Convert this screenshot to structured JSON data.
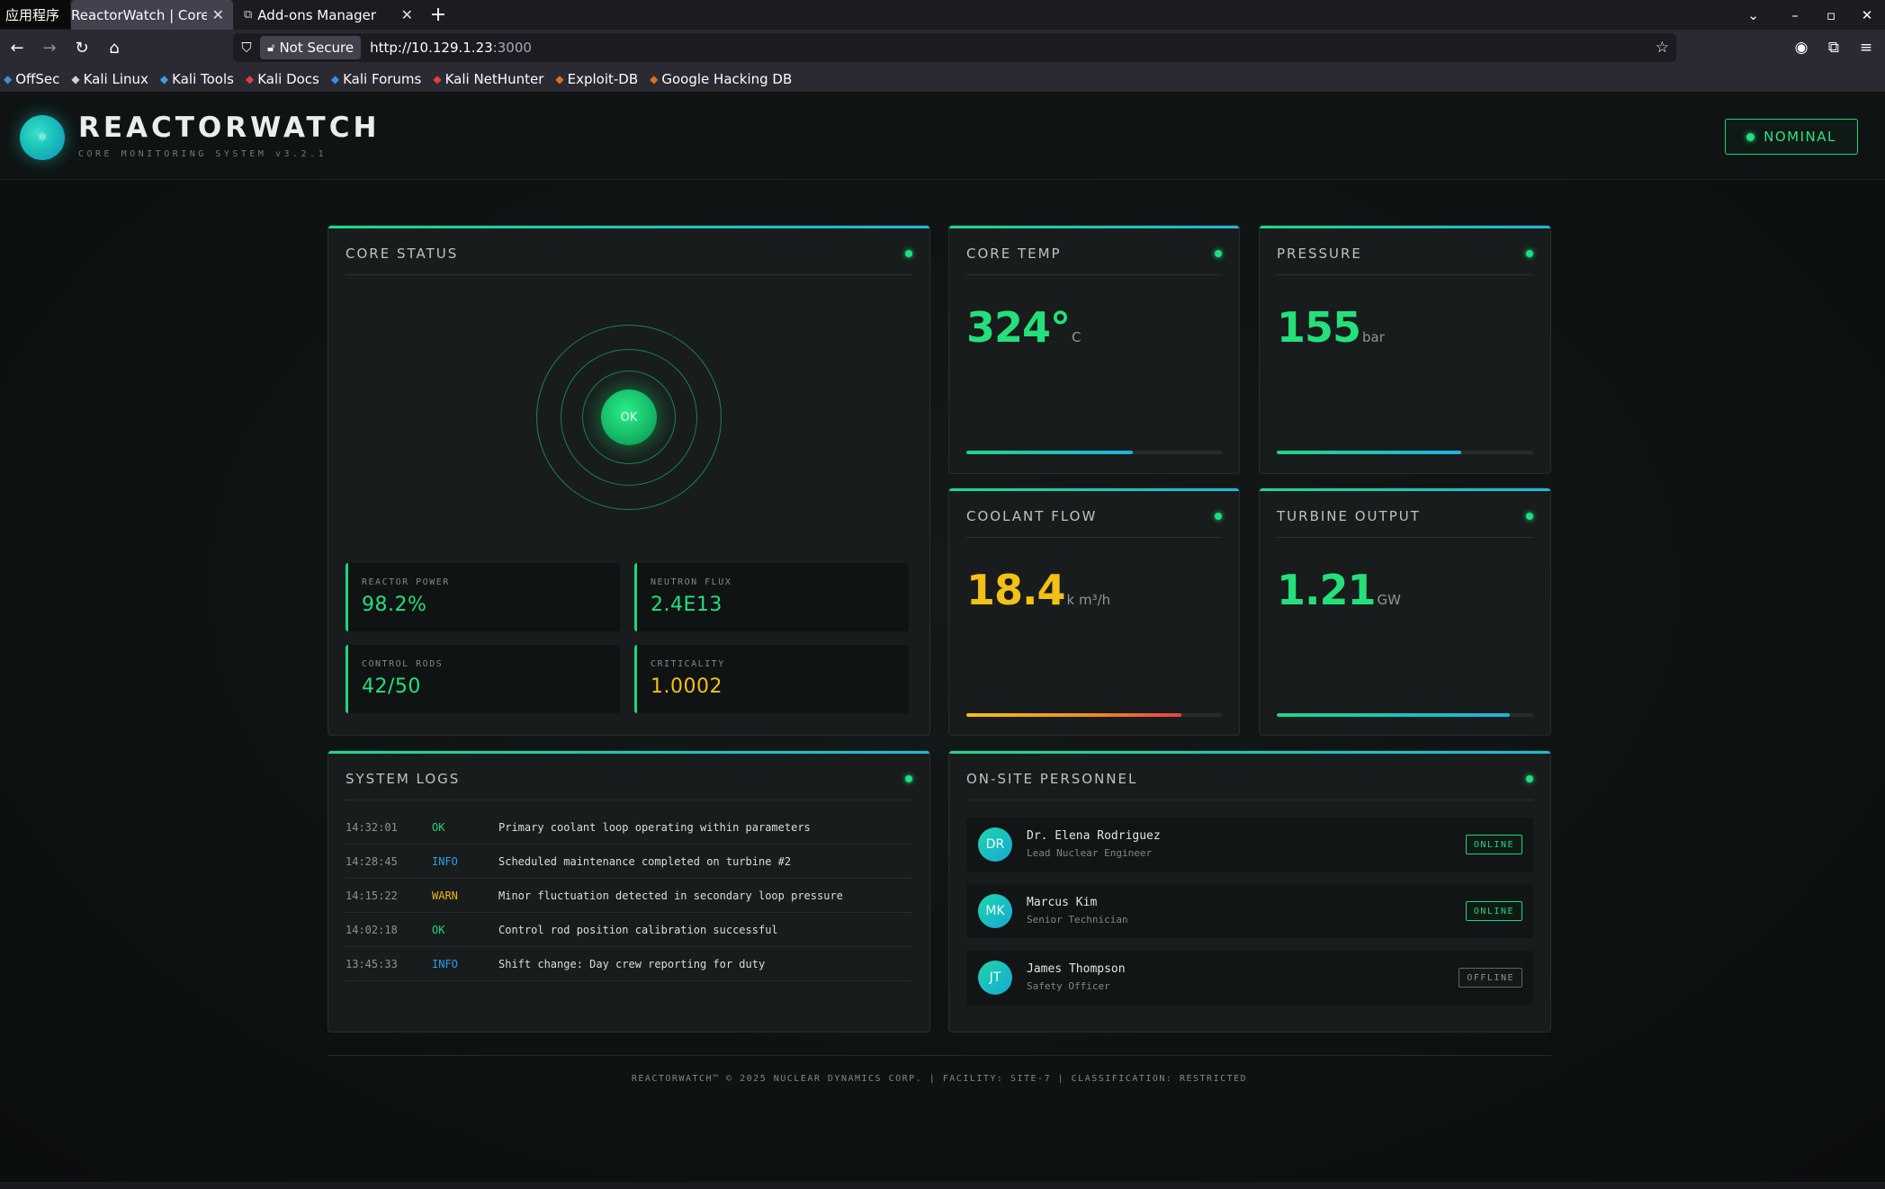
{
  "os": {
    "label": "应用程序"
  },
  "tabs": [
    {
      "title": "ReactorWatch | Core Monitor"
    },
    {
      "title": "Add-ons Manager"
    }
  ],
  "browser": {
    "security_label": "Not Secure",
    "url_host": "http://10.129.1.23",
    "url_port": ":3000"
  },
  "bookmarks": [
    {
      "label": "OffSec",
      "color": "#3a8ee6"
    },
    {
      "label": "Kali Linux",
      "color": "#d0d0d0"
    },
    {
      "label": "Kali Tools",
      "color": "#3aa0e6"
    },
    {
      "label": "Kali Docs",
      "color": "#e04040"
    },
    {
      "label": "Kali Forums",
      "color": "#3a8ee6"
    },
    {
      "label": "Kali NetHunter",
      "color": "#e04040"
    },
    {
      "label": "Exploit-DB",
      "color": "#e07020"
    },
    {
      "label": "Google Hacking DB",
      "color": "#e07020"
    }
  ],
  "app": {
    "title": "REACTORWATCH",
    "subtitle": "CORE MONITORING SYSTEM v3.2.1",
    "status": "NOMINAL"
  },
  "core_status": {
    "title": "CORE STATUS",
    "core_label": "OK",
    "metrics": [
      {
        "label": "REACTOR POWER",
        "value": "98.2%"
      },
      {
        "label": "NEUTRON FLUX",
        "value": "2.4E13"
      },
      {
        "label": "CONTROL RODS",
        "value": "42/50"
      },
      {
        "label": "CRITICALITY",
        "value": "1.0002"
      }
    ]
  },
  "gauges": [
    {
      "title": "CORE TEMP",
      "value": "324°",
      "unit": "C",
      "level": 0.65,
      "color": "green"
    },
    {
      "title": "PRESSURE",
      "value": "155",
      "unit": "bar",
      "level": 0.72,
      "color": "green"
    },
    {
      "title": "COOLANT FLOW",
      "value": "18.4",
      "unit": "k m³/h",
      "level": 0.84,
      "color": "yellow"
    },
    {
      "title": "TURBINE OUTPUT",
      "value": "1.21",
      "unit": "GW",
      "level": 0.91,
      "color": "green"
    }
  ],
  "logs": {
    "title": "SYSTEM LOGS",
    "entries": [
      {
        "time": "14:32:01",
        "level": "OK",
        "message": "Primary coolant loop operating within parameters"
      },
      {
        "time": "14:28:45",
        "level": "INFO",
        "message": "Scheduled maintenance completed on turbine #2"
      },
      {
        "time": "14:15:22",
        "level": "WARN",
        "message": "Minor fluctuation detected in secondary loop pressure"
      },
      {
        "time": "14:02:18",
        "level": "OK",
        "message": "Control rod position calibration successful"
      },
      {
        "time": "13:45:33",
        "level": "INFO",
        "message": "Shift change: Day crew reporting for duty"
      }
    ]
  },
  "personnel": {
    "title": "ON-SITE PERSONNEL",
    "people": [
      {
        "initials": "DR",
        "name": "Dr. Elena Rodriguez",
        "role": "Lead Nuclear Engineer",
        "status": "ONLINE"
      },
      {
        "initials": "MK",
        "name": "Marcus Kim",
        "role": "Senior Technician",
        "status": "ONLINE"
      },
      {
        "initials": "JT",
        "name": "James Thompson",
        "role": "Safety Officer",
        "status": "OFFLINE"
      }
    ]
  },
  "footer": {
    "text": "REACTORWATCH™ © 2025 NUCLEAR DYNAMICS CORP. | FACILITY: SITE-7 | CLASSIFICATION: RESTRICTED"
  }
}
